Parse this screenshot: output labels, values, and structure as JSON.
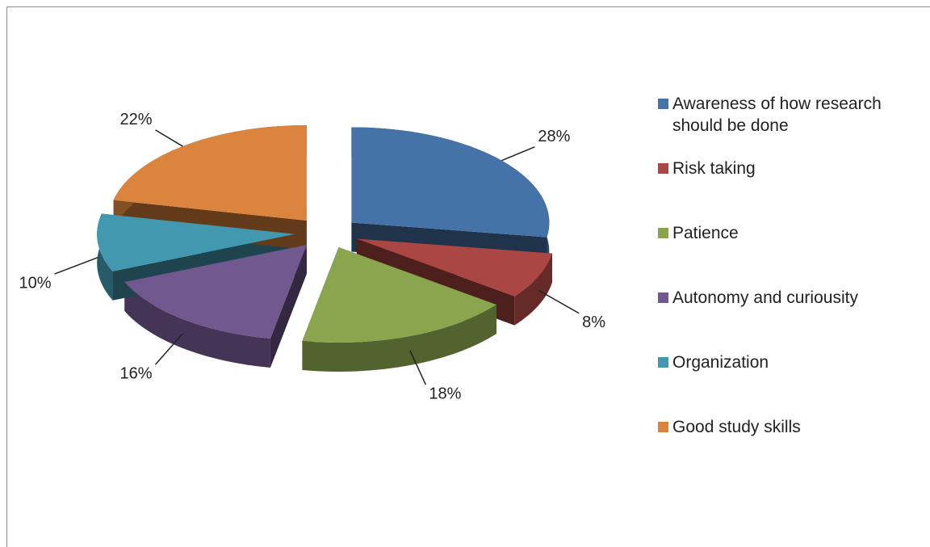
{
  "chart_data": {
    "type": "pie",
    "categories": [
      "Awareness of how research should be done",
      "Risk taking",
      "Patience",
      "Autonomy and curiousity",
      "Organization",
      "Good study skills"
    ],
    "values": [
      28,
      8,
      18,
      16,
      10,
      22
    ],
    "value_labels": [
      "28%",
      "8%",
      "18%",
      "16%",
      "10%",
      "22%"
    ],
    "colors": [
      "#4572a7",
      "#aa4643",
      "#89a54e",
      "#71588f",
      "#4198af",
      "#db843d"
    ],
    "legend": "right"
  }
}
